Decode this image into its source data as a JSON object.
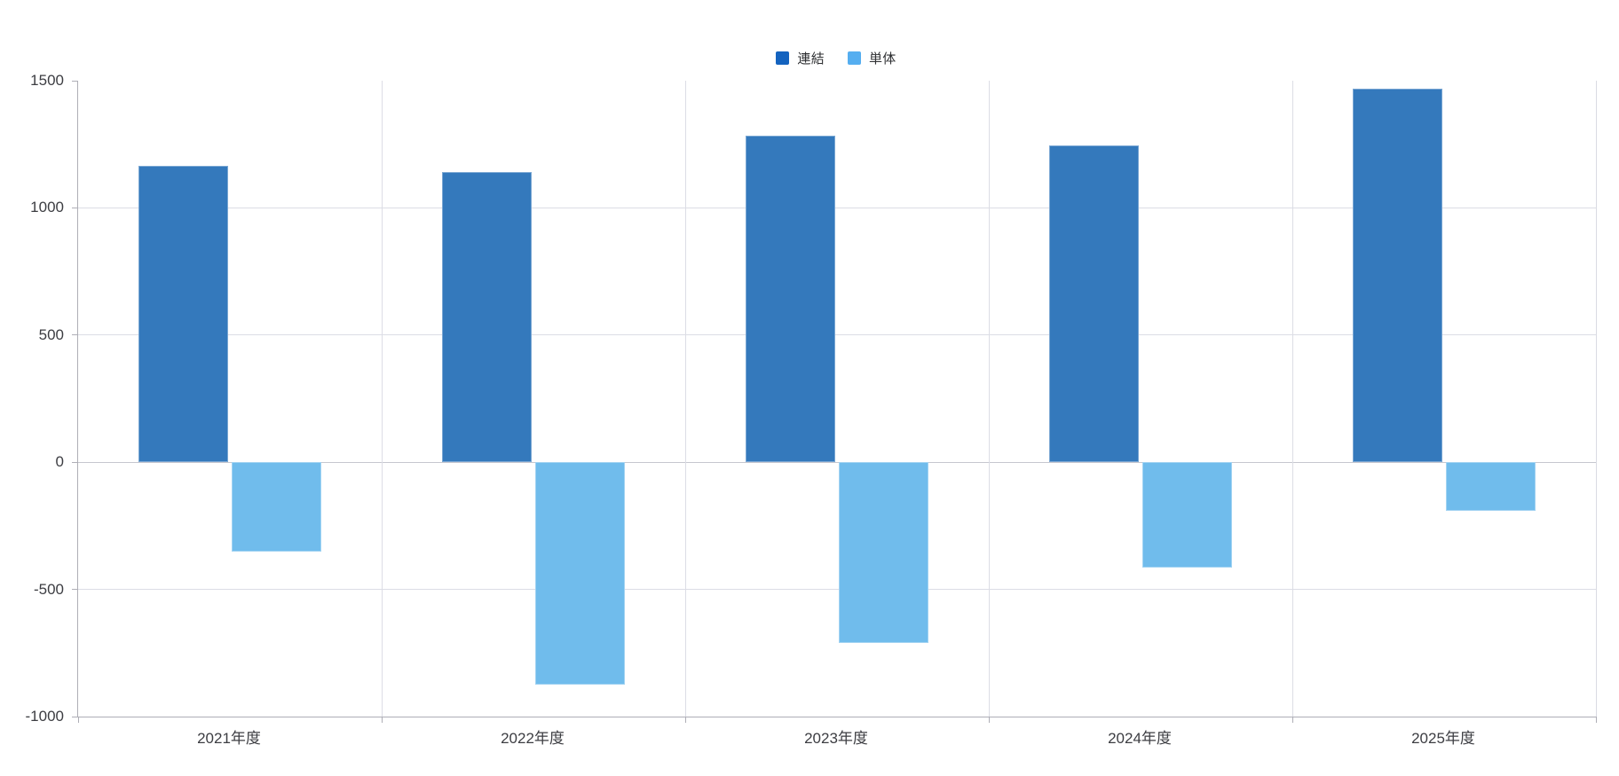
{
  "chart_data": {
    "type": "bar",
    "title": "",
    "categories": [
      "2021年度",
      "2022年度",
      "2023年度",
      "2024年度",
      "2025年度"
    ],
    "series": [
      {
        "name": "連結",
        "color": "#3479BC",
        "legend_color": "#1463BF",
        "values": [
          1165,
          1140,
          1285,
          1245,
          1470
        ]
      },
      {
        "name": "単体",
        "color": "#70BCEC",
        "legend_color": "#55AEF0",
        "values": [
          -350,
          -875,
          -710,
          -415,
          -190
        ]
      }
    ],
    "ylim": [
      -1000,
      1500
    ],
    "yticks": [
      1500,
      1000,
      500,
      0,
      -500,
      -1000
    ],
    "xlabel": "",
    "ylabel": "",
    "grid": true,
    "legend_position": "top-center",
    "colors": {
      "gridline": "#dcdde5",
      "zero_line": "#c6c7cf",
      "axis_line": "#aeaeb6",
      "tick_label": "#3c3d42",
      "background": "#ffffff"
    }
  }
}
